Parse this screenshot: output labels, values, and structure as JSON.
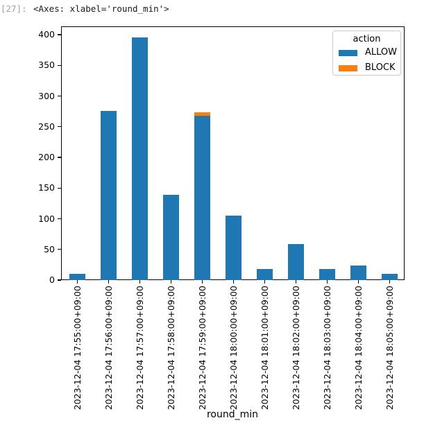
{
  "cell": {
    "prompt": "[27]:",
    "output_text": "<Axes: xlabel='round_min'>"
  },
  "chart_data": {
    "type": "bar",
    "stacked": true,
    "title": "",
    "xlabel": "round_min",
    "ylabel": "",
    "ylim": [
      0,
      413
    ],
    "yticks": [
      0,
      50,
      100,
      150,
      200,
      250,
      300,
      350,
      400
    ],
    "grid": false,
    "categories": [
      "2023-12-04 17:55:00+09:00",
      "2023-12-04 17:56:00+09:00",
      "2023-12-04 17:57:00+09:00",
      "2023-12-04 17:58:00+09:00",
      "2023-12-04 17:59:00+09:00",
      "2023-12-04 18:00:00+09:00",
      "2023-12-04 18:01:00+09:00",
      "2023-12-04 18:02:00+09:00",
      "2023-12-04 18:03:00+09:00",
      "2023-12-04 18:04:00+09:00",
      "2023-12-04 18:05:00+09:00"
    ],
    "series": [
      {
        "name": "ALLOW",
        "color": "#1f77b4",
        "values": [
          10,
          276,
          395,
          139,
          268,
          105,
          18,
          59,
          18,
          24,
          10
        ]
      },
      {
        "name": "BLOCK",
        "color": "#ff7f0e",
        "values": [
          0,
          0,
          0,
          0,
          6,
          0,
          0,
          0,
          0,
          0,
          0
        ]
      }
    ],
    "legend": {
      "title": "action",
      "position": "upper right"
    }
  }
}
